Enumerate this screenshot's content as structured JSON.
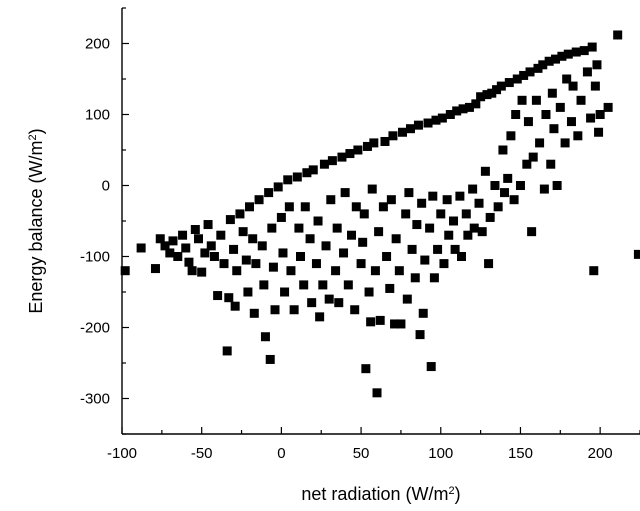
{
  "chart_data": {
    "type": "scatter",
    "title": "",
    "xlabel": "net radiation (W/m",
    "xlabel_sup": "2",
    "xlabel_end": ")",
    "ylabel": "Energy balance (W/m",
    "ylabel_sup": "2",
    "ylabel_end": ")",
    "xlim": [
      -100,
      225
    ],
    "ylim": [
      -350,
      250
    ],
    "x_ticks": [
      -100,
      -50,
      0,
      50,
      100,
      150,
      200
    ],
    "y_ticks": [
      -300,
      -200,
      -100,
      0,
      100,
      200
    ],
    "x_tick_labels": [
      "-100",
      "-50",
      "0",
      "50",
      "100",
      "150",
      "200"
    ],
    "y_tick_labels": [
      "-300",
      "-200",
      "-100",
      "0",
      "100",
      "200"
    ],
    "grid": false,
    "marker": "square",
    "marker_color": "#000000",
    "points": [
      [
        -98,
        -120
      ],
      [
        -88,
        -88
      ],
      [
        -79,
        -117
      ],
      [
        -76,
        -75
      ],
      [
        -73,
        -85
      ],
      [
        -70,
        -95
      ],
      [
        -68,
        -78
      ],
      [
        -65,
        -100
      ],
      [
        -62,
        -70
      ],
      [
        -60,
        -88
      ],
      [
        -58,
        -108
      ],
      [
        -56,
        -120
      ],
      [
        -54,
        -62
      ],
      [
        -52,
        -75
      ],
      [
        -50,
        -122
      ],
      [
        -48,
        -95
      ],
      [
        -46,
        -55
      ],
      [
        -44,
        -85
      ],
      [
        -42,
        -100
      ],
      [
        -40,
        -155
      ],
      [
        -38,
        -70
      ],
      [
        -36,
        -110
      ],
      [
        -34,
        -233
      ],
      [
        -33,
        -158
      ],
      [
        -32,
        -48
      ],
      [
        -30,
        -90
      ],
      [
        -29,
        -170
      ],
      [
        -28,
        -120
      ],
      [
        -26,
        -40
      ],
      [
        -24,
        -65
      ],
      [
        -22,
        -105
      ],
      [
        -21,
        -150
      ],
      [
        -20,
        -30
      ],
      [
        -18,
        -75
      ],
      [
        -17,
        -180
      ],
      [
        -16,
        -110
      ],
      [
        -14,
        -20
      ],
      [
        -12,
        -85
      ],
      [
        -11,
        -140
      ],
      [
        -10,
        -213
      ],
      [
        -8,
        -10
      ],
      [
        -7,
        -245
      ],
      [
        -6,
        -60
      ],
      [
        -5,
        -115
      ],
      [
        -4,
        -175
      ],
      [
        -2,
        -2
      ],
      [
        0,
        -45
      ],
      [
        1,
        -95
      ],
      [
        2,
        -150
      ],
      [
        4,
        8
      ],
      [
        5,
        -30
      ],
      [
        6,
        -120
      ],
      [
        8,
        -175
      ],
      [
        10,
        12
      ],
      [
        11,
        -60
      ],
      [
        12,
        -100
      ],
      [
        14,
        -140
      ],
      [
        15,
        -30
      ],
      [
        16,
        18
      ],
      [
        18,
        -75
      ],
      [
        19,
        -165
      ],
      [
        20,
        22
      ],
      [
        22,
        -110
      ],
      [
        23,
        -50
      ],
      [
        24,
        -185
      ],
      [
        26,
        -140
      ],
      [
        27,
        30
      ],
      [
        28,
        -85
      ],
      [
        30,
        -160
      ],
      [
        31,
        -20
      ],
      [
        32,
        35
      ],
      [
        34,
        -120
      ],
      [
        35,
        -60
      ],
      [
        36,
        -165
      ],
      [
        38,
        40
      ],
      [
        39,
        -95
      ],
      [
        40,
        -10
      ],
      [
        42,
        -140
      ],
      [
        43,
        45
      ],
      [
        44,
        -70
      ],
      [
        46,
        -175
      ],
      [
        47,
        -30
      ],
      [
        48,
        50
      ],
      [
        50,
        -110
      ],
      [
        51,
        -80
      ],
      [
        52,
        -40
      ],
      [
        53,
        -258
      ],
      [
        54,
        55
      ],
      [
        55,
        -150
      ],
      [
        56,
        -192
      ],
      [
        57,
        -5
      ],
      [
        58,
        60
      ],
      [
        59,
        -120
      ],
      [
        60,
        -292
      ],
      [
        61,
        -65
      ],
      [
        62,
        -190
      ],
      [
        64,
        -30
      ],
      [
        65,
        62
      ],
      [
        66,
        -100
      ],
      [
        68,
        -145
      ],
      [
        69,
        -20
      ],
      [
        70,
        70
      ],
      [
        71,
        -195
      ],
      [
        72,
        -75
      ],
      [
        74,
        -120
      ],
      [
        75,
        -195
      ],
      [
        76,
        75
      ],
      [
        78,
        -40
      ],
      [
        79,
        -160
      ],
      [
        80,
        -10
      ],
      [
        81,
        80
      ],
      [
        82,
        -90
      ],
      [
        84,
        -130
      ],
      [
        85,
        -55
      ],
      [
        86,
        85
      ],
      [
        87,
        -210
      ],
      [
        88,
        -25
      ],
      [
        89,
        -180
      ],
      [
        90,
        -105
      ],
      [
        92,
        88
      ],
      [
        93,
        -60
      ],
      [
        94,
        -255
      ],
      [
        95,
        -15
      ],
      [
        96,
        -130
      ],
      [
        97,
        92
      ],
      [
        98,
        -90
      ],
      [
        100,
        -40
      ],
      [
        101,
        95
      ],
      [
        102,
        -110
      ],
      [
        104,
        -20
      ],
      [
        105,
        -70
      ],
      [
        106,
        100
      ],
      [
        108,
        -50
      ],
      [
        109,
        -90
      ],
      [
        110,
        105
      ],
      [
        112,
        -15
      ],
      [
        113,
        -100
      ],
      [
        114,
        108
      ],
      [
        116,
        -40
      ],
      [
        117,
        -70
      ],
      [
        118,
        110
      ],
      [
        120,
        -5
      ],
      [
        121,
        -60
      ],
      [
        122,
        115
      ],
      [
        124,
        -25
      ],
      [
        125,
        125
      ],
      [
        126,
        -65
      ],
      [
        128,
        20
      ],
      [
        129,
        128
      ],
      [
        130,
        -110
      ],
      [
        131,
        -45
      ],
      [
        132,
        130
      ],
      [
        134,
        0
      ],
      [
        135,
        135
      ],
      [
        136,
        -30
      ],
      [
        138,
        140
      ],
      [
        139,
        50
      ],
      [
        140,
        -10
      ],
      [
        142,
        10
      ],
      [
        143,
        145
      ],
      [
        144,
        70
      ],
      [
        146,
        -20
      ],
      [
        147,
        100
      ],
      [
        148,
        150
      ],
      [
        150,
        0
      ],
      [
        151,
        120
      ],
      [
        152,
        155
      ],
      [
        154,
        30
      ],
      [
        155,
        90
      ],
      [
        156,
        160
      ],
      [
        157,
        -65
      ],
      [
        158,
        40
      ],
      [
        160,
        120
      ],
      [
        161,
        165
      ],
      [
        162,
        60
      ],
      [
        164,
        170
      ],
      [
        165,
        -5
      ],
      [
        166,
        100
      ],
      [
        168,
        175
      ],
      [
        169,
        30
      ],
      [
        170,
        130
      ],
      [
        171,
        80
      ],
      [
        172,
        178
      ],
      [
        173,
        0
      ],
      [
        175,
        110
      ],
      [
        176,
        182
      ],
      [
        178,
        60
      ],
      [
        179,
        150
      ],
      [
        180,
        185
      ],
      [
        182,
        90
      ],
      [
        183,
        140
      ],
      [
        185,
        188
      ],
      [
        186,
        70
      ],
      [
        188,
        120
      ],
      [
        190,
        190
      ],
      [
        192,
        160
      ],
      [
        194,
        95
      ],
      [
        195,
        195
      ],
      [
        196,
        -120
      ],
      [
        197,
        140
      ],
      [
        198,
        170
      ],
      [
        199,
        75
      ],
      [
        200,
        100
      ],
      [
        205,
        110
      ],
      [
        211,
        212
      ],
      [
        224,
        -97
      ]
    ]
  }
}
